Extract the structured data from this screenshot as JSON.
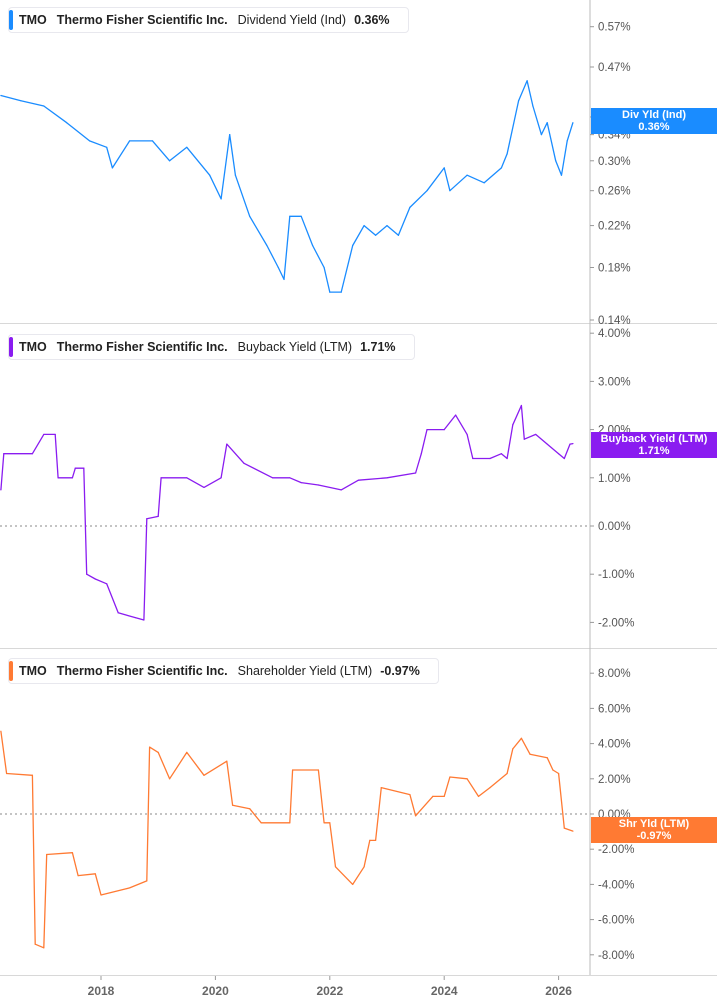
{
  "chart_data": [
    {
      "type": "line",
      "ticker": "TMO",
      "company": "Thermo Fisher Scientific Inc.",
      "metric": "Dividend Yield (Ind)",
      "current": "0.36%",
      "badge_label": "Div Yld (Ind)",
      "badge_value": "0.36%",
      "color": "#1a8cff",
      "scale": "log",
      "yticks": [
        {
          "v": 0.57,
          "label": "0.57%"
        },
        {
          "v": 0.47,
          "label": "0.47%"
        },
        {
          "v": 0.37,
          "label": "0.37%"
        },
        {
          "v": 0.34,
          "label": "0.34%"
        },
        {
          "v": 0.3,
          "label": "0.30%"
        },
        {
          "v": 0.26,
          "label": "0.26%"
        },
        {
          "v": 0.22,
          "label": "0.22%"
        },
        {
          "v": 0.18,
          "label": "0.18%"
        },
        {
          "v": 0.14,
          "label": "0.14%"
        }
      ],
      "x": [
        2016.25,
        2016.6,
        2017.0,
        2017.4,
        2017.8,
        2018.1,
        2018.2,
        2018.5,
        2018.9,
        2019.2,
        2019.5,
        2019.9,
        2020.1,
        2020.25,
        2020.35,
        2020.6,
        2020.9,
        2021.1,
        2021.2,
        2021.3,
        2021.5,
        2021.7,
        2021.9,
        2022.0,
        2022.2,
        2022.4,
        2022.6,
        2022.8,
        2023.0,
        2023.2,
        2023.4,
        2023.7,
        2024.0,
        2024.1,
        2024.4,
        2024.7,
        2025.0,
        2025.1,
        2025.3,
        2025.45,
        2025.55,
        2025.7,
        2025.8,
        2025.95,
        2026.05,
        2026.15,
        2026.25
      ],
      "y": [
        0.41,
        0.4,
        0.39,
        0.36,
        0.33,
        0.32,
        0.29,
        0.33,
        0.33,
        0.3,
        0.32,
        0.28,
        0.25,
        0.34,
        0.28,
        0.23,
        0.2,
        0.18,
        0.17,
        0.23,
        0.23,
        0.2,
        0.18,
        0.16,
        0.16,
        0.2,
        0.22,
        0.21,
        0.22,
        0.21,
        0.24,
        0.26,
        0.29,
        0.26,
        0.28,
        0.27,
        0.29,
        0.31,
        0.4,
        0.44,
        0.39,
        0.34,
        0.36,
        0.3,
        0.28,
        0.33,
        0.36
      ]
    },
    {
      "type": "line",
      "ticker": "TMO",
      "company": "Thermo Fisher Scientific Inc.",
      "metric": "Buyback Yield (LTM)",
      "current": "1.71%",
      "badge_label": "Buyback Yield (LTM)",
      "badge_value": "1.71%",
      "color": "#8a1cf0",
      "scale": "linear",
      "yticks": [
        {
          "v": 4,
          "label": "4.00%"
        },
        {
          "v": 3,
          "label": "3.00%"
        },
        {
          "v": 2,
          "label": "2.00%"
        },
        {
          "v": 1,
          "label": "1.00%"
        },
        {
          "v": 0,
          "label": "0.00%"
        },
        {
          "v": -1,
          "label": "-1.00%"
        },
        {
          "v": -2,
          "label": "-2.00%"
        }
      ],
      "x": [
        2016.25,
        2016.3,
        2016.8,
        2017.0,
        2017.2,
        2017.25,
        2017.5,
        2017.55,
        2017.7,
        2017.75,
        2017.9,
        2018.1,
        2018.3,
        2018.6,
        2018.75,
        2018.8,
        2019.0,
        2019.05,
        2019.5,
        2019.8,
        2020.1,
        2020.2,
        2020.5,
        2021.0,
        2021.3,
        2021.5,
        2021.8,
        2022.2,
        2022.5,
        2023.0,
        2023.5,
        2023.6,
        2023.7,
        2024.0,
        2024.2,
        2024.4,
        2024.5,
        2024.8,
        2025.0,
        2025.1,
        2025.2,
        2025.35,
        2025.4,
        2025.6,
        2025.8,
        2026.0,
        2026.1,
        2026.2,
        2026.25
      ],
      "y": [
        0.75,
        1.5,
        1.5,
        1.9,
        1.9,
        1.0,
        1.0,
        1.2,
        1.2,
        -1.0,
        -1.1,
        -1.2,
        -1.8,
        -1.9,
        -1.95,
        0.15,
        0.2,
        1.0,
        1.0,
        0.8,
        1.0,
        1.7,
        1.3,
        1.0,
        1.0,
        0.9,
        0.85,
        0.75,
        0.95,
        1.0,
        1.1,
        1.5,
        2.0,
        2.0,
        2.3,
        1.9,
        1.4,
        1.4,
        1.5,
        1.4,
        2.1,
        2.5,
        1.8,
        1.9,
        1.7,
        1.5,
        1.4,
        1.7,
        1.71
      ]
    },
    {
      "type": "line",
      "ticker": "TMO",
      "company": "Thermo Fisher Scientific Inc.",
      "metric": "Shareholder Yield (LTM)",
      "current": "-0.97%",
      "badge_label": "Shr Yld (LTM)",
      "badge_value": "-0.97%",
      "color": "#ff7a33",
      "scale": "linear",
      "yticks": [
        {
          "v": 8,
          "label": "8.00%"
        },
        {
          "v": 6,
          "label": "6.00%"
        },
        {
          "v": 4,
          "label": "4.00%"
        },
        {
          "v": 2,
          "label": "2.00%"
        },
        {
          "v": 0,
          "label": "0.00%"
        },
        {
          "v": -2,
          "label": "-2.00%"
        },
        {
          "v": -4,
          "label": "-4.00%"
        },
        {
          "v": -6,
          "label": "-6.00%"
        },
        {
          "v": -8,
          "label": "-8.00%"
        }
      ],
      "x": [
        2016.25,
        2016.35,
        2016.8,
        2016.85,
        2017.0,
        2017.05,
        2017.5,
        2017.6,
        2017.9,
        2018.0,
        2018.5,
        2018.8,
        2018.85,
        2019.0,
        2019.2,
        2019.5,
        2019.8,
        2020.2,
        2020.3,
        2020.6,
        2020.8,
        2021.3,
        2021.35,
        2021.8,
        2021.9,
        2022.0,
        2022.1,
        2022.4,
        2022.6,
        2022.7,
        2022.8,
        2022.9,
        2023.4,
        2023.5,
        2023.8,
        2024.0,
        2024.1,
        2024.4,
        2024.6,
        2024.8,
        2025.1,
        2025.2,
        2025.35,
        2025.5,
        2025.8,
        2025.9,
        2026.0,
        2026.1,
        2026.25
      ],
      "y": [
        4.7,
        2.3,
        2.2,
        -7.4,
        -7.6,
        -2.3,
        -2.2,
        -3.5,
        -3.4,
        -4.6,
        -4.2,
        -3.8,
        3.8,
        3.5,
        2.0,
        3.5,
        2.2,
        3.0,
        0.5,
        0.3,
        -0.5,
        -0.5,
        2.5,
        2.5,
        -0.5,
        -0.5,
        -3.0,
        -4.0,
        -3.0,
        -1.5,
        -1.5,
        1.5,
        1.1,
        -0.1,
        1.0,
        1.0,
        2.1,
        2.0,
        1.0,
        1.5,
        2.3,
        3.7,
        4.3,
        3.4,
        3.2,
        2.5,
        2.3,
        -0.8,
        -0.97
      ]
    }
  ],
  "xaxis": {
    "ticks": [
      {
        "v": 2018,
        "label": "2018"
      },
      {
        "v": 2020,
        "label": "2020"
      },
      {
        "v": 2022,
        "label": "2022"
      },
      {
        "v": 2024,
        "label": "2024"
      },
      {
        "v": 2026,
        "label": "2026"
      }
    ]
  }
}
